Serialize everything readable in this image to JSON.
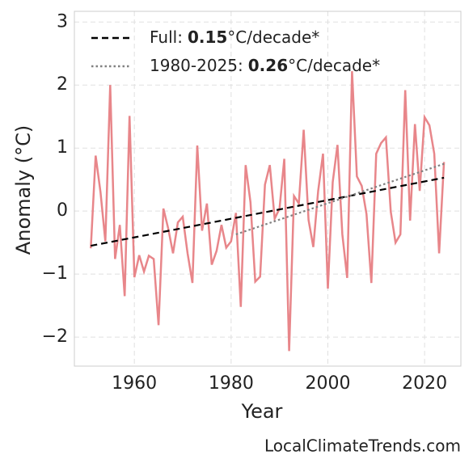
{
  "chart_data": {
    "type": "line",
    "xlabel": "Year",
    "ylabel": "Anomaly (°C)",
    "watermark": "LocalClimateTrends.com",
    "xlim": [
      1947.6,
      2027.5
    ],
    "ylim": [
      -2.46,
      3.17
    ],
    "xticks": [
      1960,
      1980,
      2000,
      2020
    ],
    "yticks": [
      {
        "value": -2,
        "label": "−2"
      },
      {
        "value": -1,
        "label": "−1"
      },
      0,
      1,
      2,
      3
    ],
    "grid": true,
    "legend": "upper left",
    "series": [
      {
        "color": "#e8868a",
        "style": "solid",
        "x": [
          1951,
          1952,
          1953,
          1954,
          1955,
          1956,
          1957,
          1958,
          1959,
          1960,
          1961,
          1962,
          1963,
          1964,
          1965,
          1966,
          1967,
          1968,
          1969,
          1970,
          1971,
          1972,
          1973,
          1974,
          1975,
          1976,
          1977,
          1978,
          1979,
          1980,
          1981,
          1982,
          1983,
          1984,
          1985,
          1986,
          1987,
          1988,
          1989,
          1990,
          1991,
          1992,
          1993,
          1994,
          1995,
          1996,
          1997,
          1998,
          1999,
          2000,
          2001,
          2002,
          2003,
          2004,
          2005,
          2006,
          2007,
          2008,
          2009,
          2010,
          2011,
          2012,
          2013,
          2014,
          2015,
          2016,
          2017,
          2018,
          2019,
          2020,
          2021,
          2022,
          2023,
          2024
        ],
        "values": [
          -0.59,
          0.88,
          0.3,
          -0.48,
          2.0,
          -0.76,
          -0.22,
          -1.35,
          1.51,
          -1.05,
          -0.7,
          -0.96,
          -0.71,
          -0.76,
          -1.81,
          0.04,
          -0.28,
          -0.67,
          -0.18,
          -0.09,
          -0.67,
          -1.14,
          1.04,
          -0.31,
          0.12,
          -0.85,
          -0.63,
          -0.22,
          -0.58,
          -0.48,
          -0.03,
          -1.52,
          0.73,
          0.14,
          -1.12,
          -1.04,
          0.42,
          0.73,
          -0.12,
          0.04,
          0.83,
          -2.22,
          0.24,
          0.12,
          1.29,
          -0.14,
          -0.57,
          0.32,
          0.91,
          -1.23,
          0.46,
          1.05,
          -0.37,
          -1.06,
          2.22,
          0.55,
          0.4,
          -0.05,
          -1.14,
          0.91,
          1.08,
          1.17,
          -0.01,
          -0.5,
          -0.37,
          1.92,
          -0.15,
          1.38,
          0.32,
          1.49,
          1.36,
          0.91,
          -0.67,
          0.78
        ]
      },
      {
        "name": "Full:",
        "rate": "0.15",
        "unit": "°C/decade*",
        "color": "#000000",
        "style": "dashed",
        "x": [
          1951,
          2024
        ],
        "values": [
          -0.55,
          0.53
        ]
      },
      {
        "name": "1980-2025:",
        "rate": "0.26",
        "unit": "°C/decade*",
        "color": "#808080",
        "style": "dotted",
        "x": [
          1981,
          2024
        ],
        "values": [
          -0.37,
          0.75
        ]
      }
    ]
  }
}
